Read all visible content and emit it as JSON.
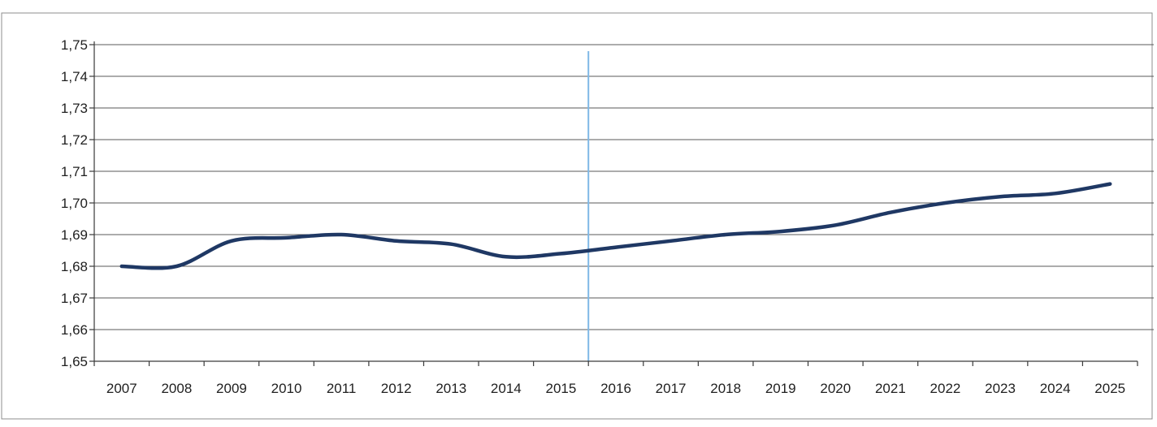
{
  "chart_data": {
    "type": "line",
    "title": "",
    "xlabel": "",
    "ylabel": "",
    "ylim": [
      1.65,
      1.75
    ],
    "y_ticks": [
      "1,65",
      "1,66",
      "1,67",
      "1,68",
      "1,69",
      "1,70",
      "1,71",
      "1,72",
      "1,73",
      "1,74",
      "1,75"
    ],
    "y_tick_values": [
      1.65,
      1.66,
      1.67,
      1.68,
      1.69,
      1.7,
      1.71,
      1.72,
      1.73,
      1.74,
      1.75
    ],
    "categories": [
      "2007",
      "2008",
      "2009",
      "2010",
      "2011",
      "2012",
      "2013",
      "2014",
      "2015",
      "2016",
      "2017",
      "2018",
      "2019",
      "2020",
      "2021",
      "2022",
      "2023",
      "2024",
      "2025"
    ],
    "series": [
      {
        "values": [
          1.68,
          1.68,
          1.688,
          1.689,
          1.69,
          1.688,
          1.687,
          1.683,
          1.684,
          1.686,
          1.688,
          1.69,
          1.691,
          1.693,
          1.697,
          1.7,
          1.702,
          1.703,
          1.706
        ],
        "color": "#1f3864"
      }
    ],
    "grid": true,
    "legend": "none",
    "marker_line": {
      "between": [
        "2015",
        "2016"
      ],
      "color": "#7fb8e6"
    }
  }
}
